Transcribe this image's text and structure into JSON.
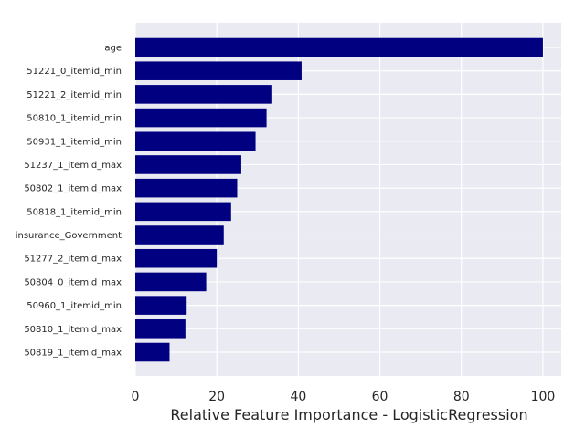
{
  "chart_data": {
    "type": "bar",
    "orientation": "horizontal",
    "categories": [
      "age",
      "51221_0_itemid_min",
      "51221_2_itemid_min",
      "50810_1_itemid_min",
      "50931_1_itemid_min",
      "51237_1_itemid_max",
      "50802_1_itemid_max",
      "50818_1_itemid_min",
      "insurance_Government",
      "51277_2_itemid_max",
      "50804_0_itemid_max",
      "50960_1_itemid_min",
      "50810_1_itemid_max",
      "50819_1_itemid_max"
    ],
    "values": [
      100,
      40.8,
      33.6,
      32.2,
      29.5,
      26.0,
      25.0,
      23.5,
      21.7,
      20.0,
      17.4,
      12.6,
      12.3,
      8.4
    ],
    "title": "",
    "xlabel": "Relative Feature Importance - LogisticRegression",
    "ylabel": "",
    "xlim": [
      0,
      104.5
    ],
    "xticks": [
      0,
      20,
      40,
      60,
      80,
      100
    ],
    "grid": true,
    "bar_color": "#000080",
    "background_color": "#eaeaf2",
    "grid_color": "#ffffff"
  }
}
